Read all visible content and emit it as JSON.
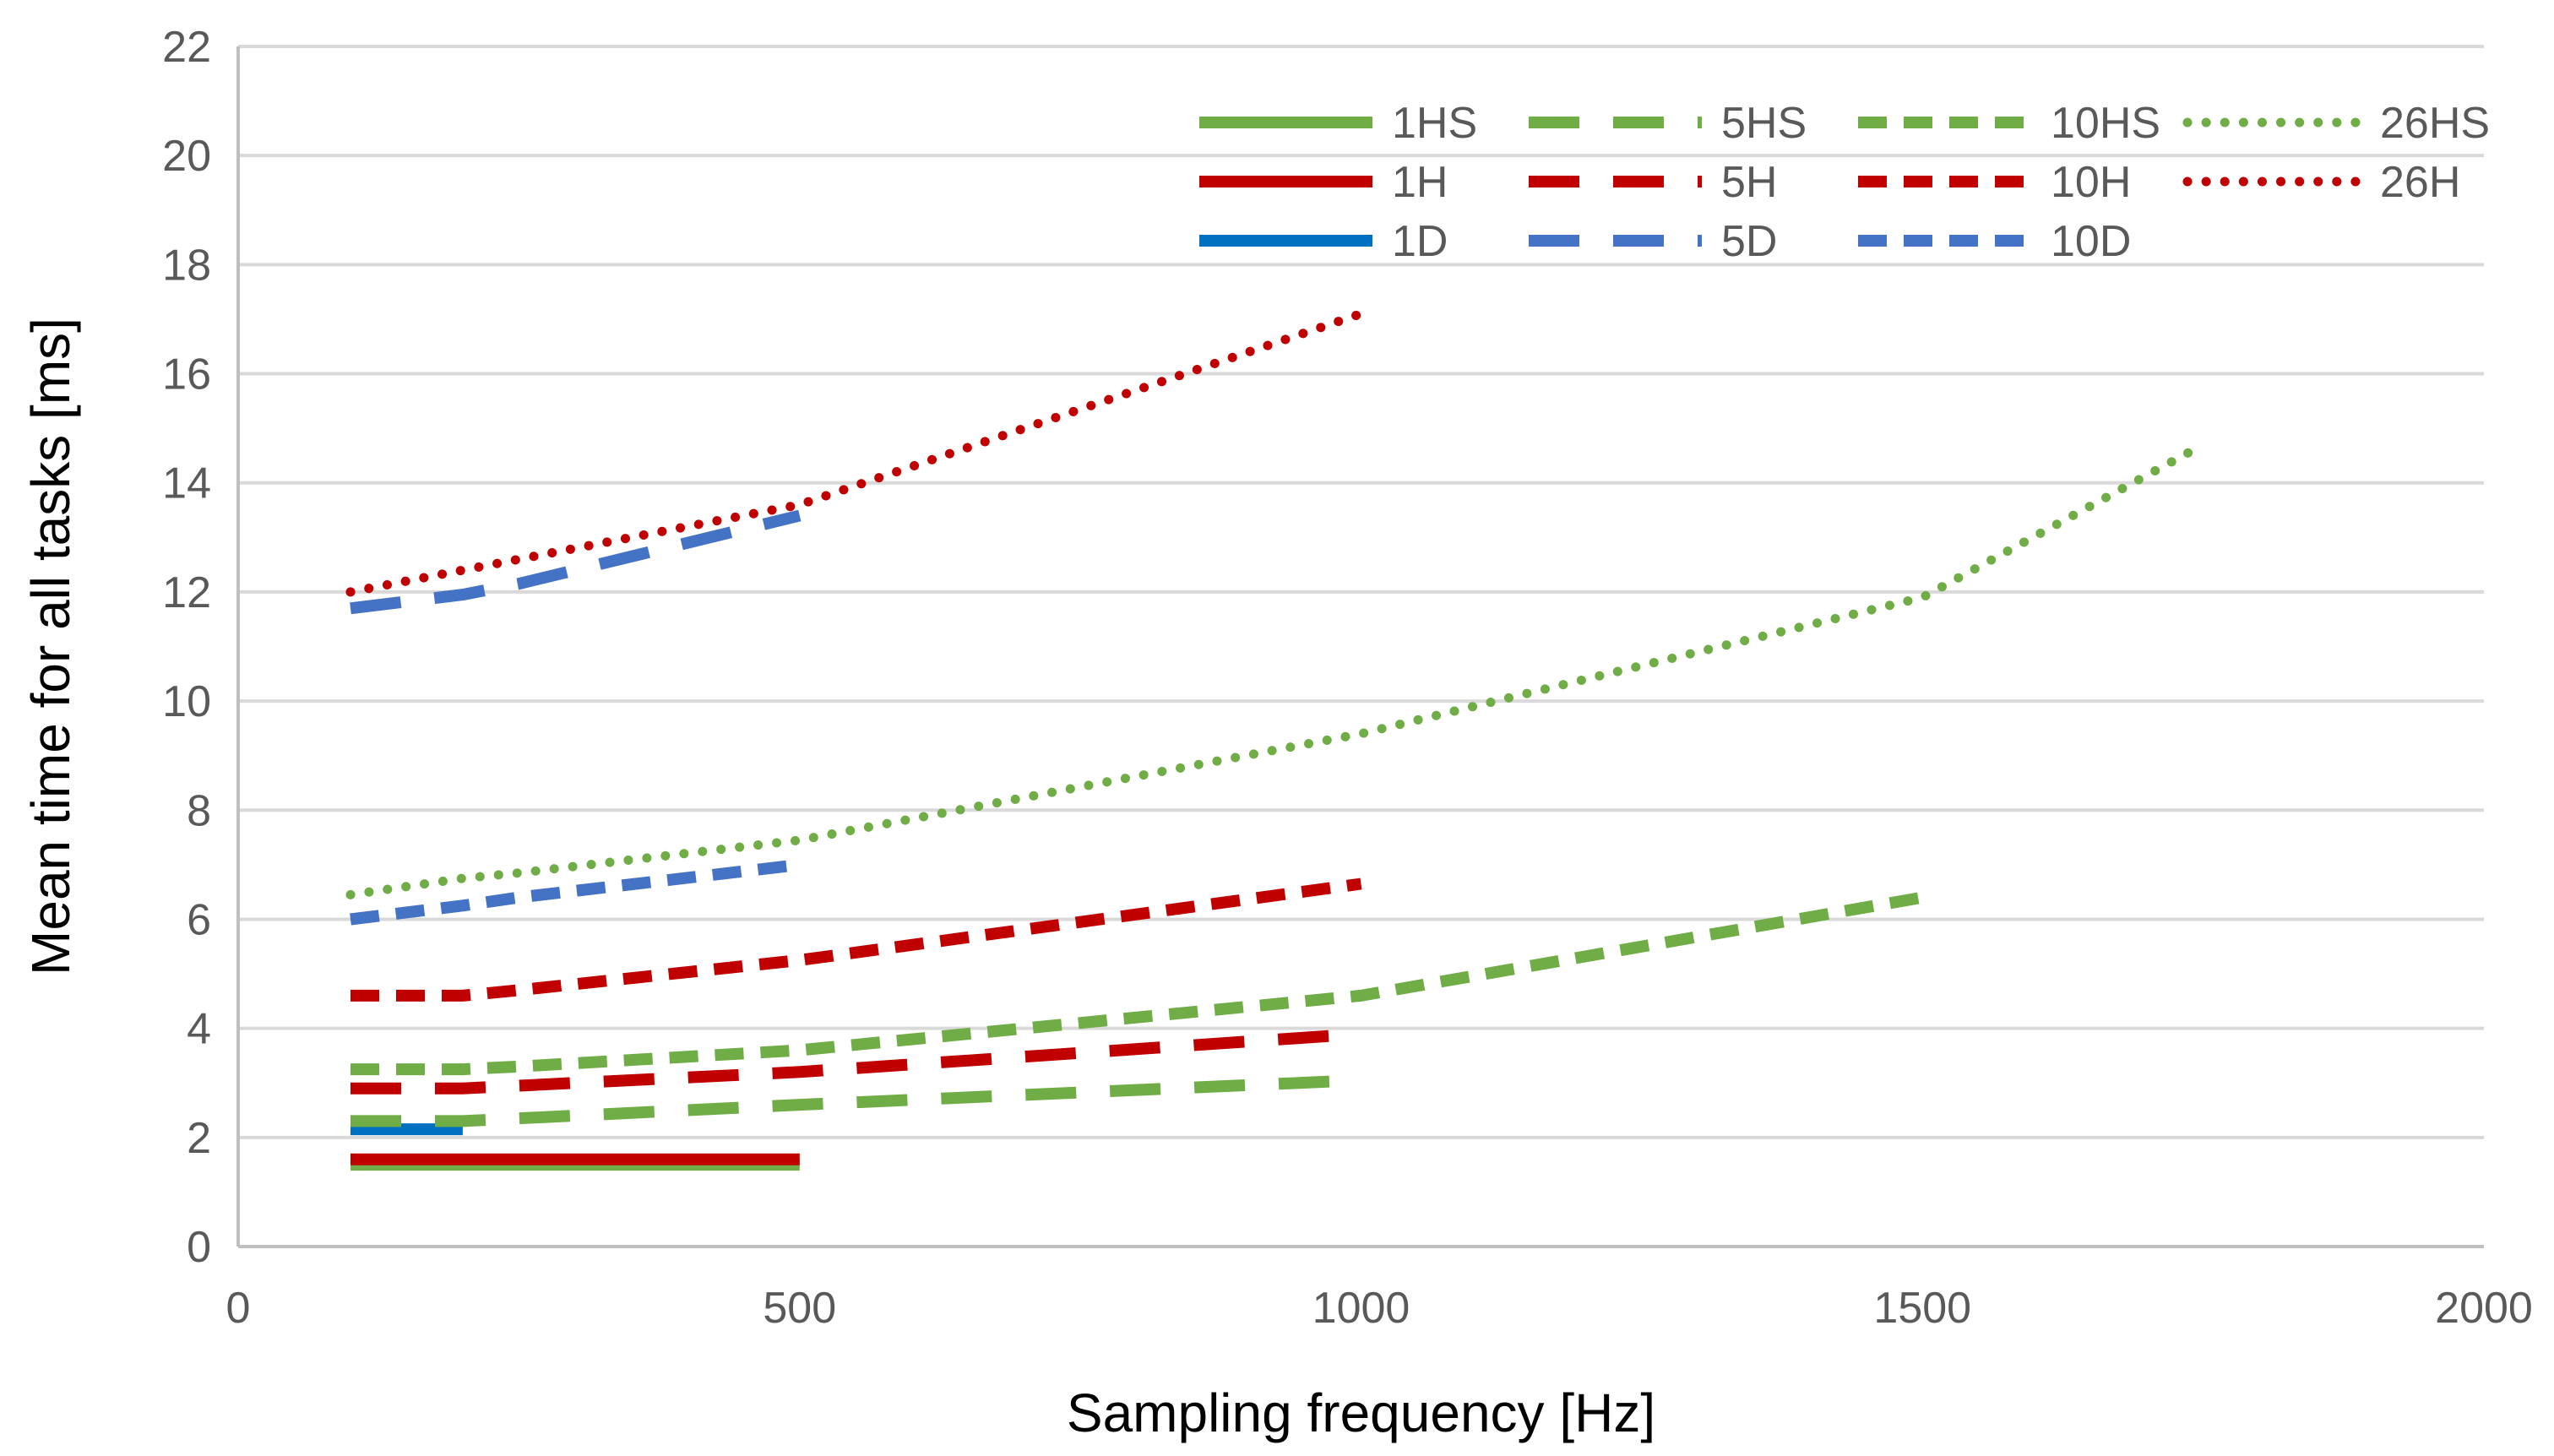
{
  "chart_data": {
    "type": "line",
    "title": "",
    "xlabel": "Sampling frequency [Hz]",
    "ylabel": "Mean time for all tasks [ms]",
    "xlim": [
      0,
      2000
    ],
    "ylim": [
      0,
      22
    ],
    "xticks": [
      0,
      500,
      1000,
      1500,
      2000
    ],
    "yticks": [
      0,
      2,
      4,
      6,
      8,
      10,
      12,
      14,
      16,
      18,
      20,
      22
    ],
    "grid": "horizontal",
    "legend_position": "top-right",
    "series": [
      {
        "name": "1HS",
        "color": "#70AD47",
        "style": "solid",
        "x": [
          100,
          200,
          250,
          500
        ],
        "y": [
          1.5,
          1.5,
          1.5,
          1.5
        ]
      },
      {
        "name": "1H",
        "color": "#C00000",
        "style": "solid",
        "x": [
          100,
          200,
          250,
          500
        ],
        "y": [
          1.6,
          1.6,
          1.6,
          1.6
        ]
      },
      {
        "name": "1D",
        "color": "#0070C0",
        "style": "solid",
        "x": [
          100,
          200
        ],
        "y": [
          2.15,
          2.15
        ]
      },
      {
        "name": "5HS",
        "color": "#70AD47",
        "style": "dash",
        "x": [
          100,
          200,
          250,
          500,
          1000
        ],
        "y": [
          2.3,
          2.3,
          2.35,
          2.6,
          3.05
        ]
      },
      {
        "name": "5H",
        "color": "#C00000",
        "style": "dash",
        "x": [
          100,
          200,
          250,
          500,
          1000
        ],
        "y": [
          2.9,
          2.9,
          2.95,
          3.2,
          3.9
        ]
      },
      {
        "name": "5D",
        "color": "#4472C4",
        "style": "dash",
        "x": [
          100,
          200,
          250,
          500
        ],
        "y": [
          11.7,
          11.95,
          12.15,
          13.4
        ]
      },
      {
        "name": "10HS",
        "color": "#70AD47",
        "style": "dash2",
        "x": [
          100,
          200,
          250,
          500,
          1000,
          1500
        ],
        "y": [
          3.25,
          3.25,
          3.3,
          3.6,
          4.6,
          6.4
        ]
      },
      {
        "name": "10H",
        "color": "#C00000",
        "style": "dash2",
        "x": [
          100,
          200,
          250,
          500,
          1000
        ],
        "y": [
          4.6,
          4.6,
          4.7,
          5.25,
          6.65
        ]
      },
      {
        "name": "10D",
        "color": "#4472C4",
        "style": "dash2",
        "x": [
          100,
          200,
          250,
          500
        ],
        "y": [
          6.0,
          6.25,
          6.4,
          7.0
        ]
      },
      {
        "name": "26HS",
        "color": "#70AD47",
        "style": "dot",
        "x": [
          100,
          200,
          250,
          500,
          1000,
          1500,
          1750
        ],
        "y": [
          6.45,
          6.75,
          6.85,
          7.45,
          9.4,
          11.9,
          14.7
        ]
      },
      {
        "name": "26H",
        "color": "#C00000",
        "style": "dot",
        "x": [
          100,
          200,
          250,
          500,
          1000
        ],
        "y": [
          12.0,
          12.4,
          12.6,
          13.6,
          17.1
        ]
      }
    ]
  }
}
